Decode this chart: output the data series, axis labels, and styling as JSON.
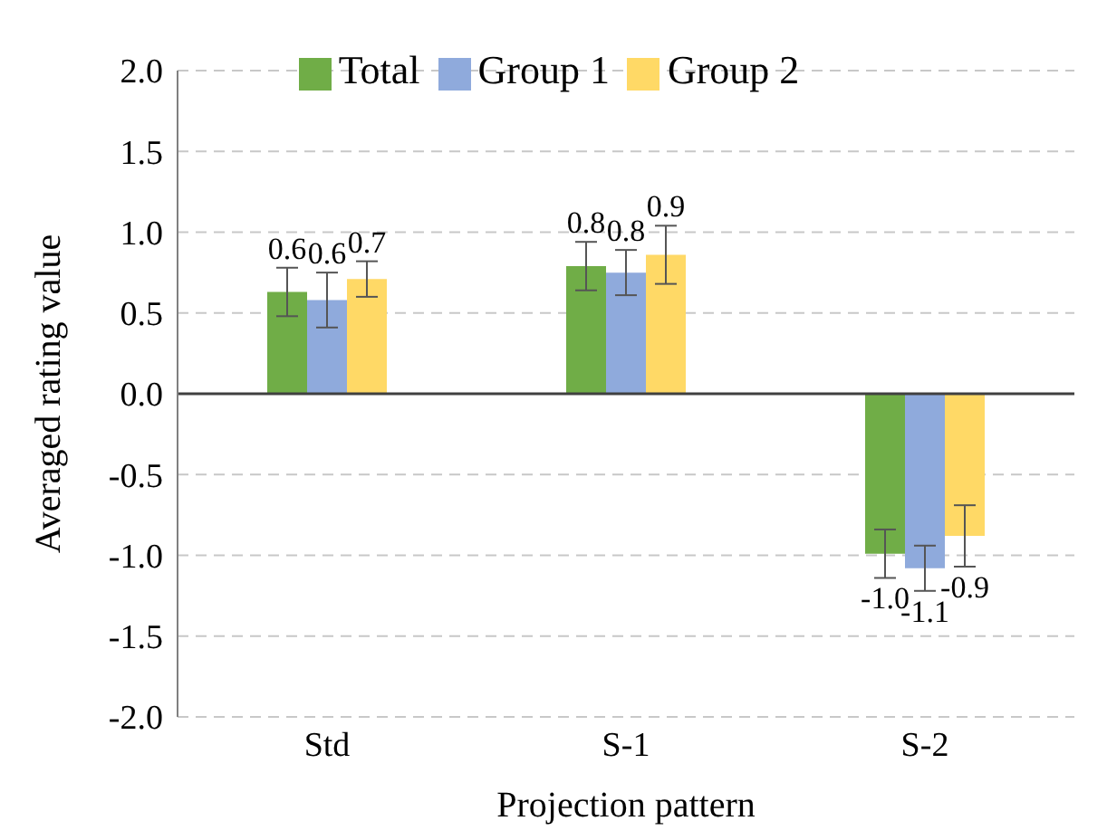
{
  "chart_data": {
    "type": "bar",
    "xlabel": "Projection pattern",
    "ylabel": "Averaged rating value",
    "categories": [
      "Std",
      "S-1",
      "S-2"
    ],
    "series": [
      {
        "name": "Total",
        "color": "#70ad47",
        "values": [
          0.63,
          0.79,
          -0.99
        ],
        "errors": [
          0.15,
          0.15,
          0.15
        ],
        "value_labels": [
          "0.6",
          "0.8",
          "-1.0"
        ]
      },
      {
        "name": "Group 1",
        "color": "#8faadc",
        "values": [
          0.58,
          0.75,
          -1.08
        ],
        "errors": [
          0.17,
          0.14,
          0.14
        ],
        "value_labels": [
          "0.6",
          "0.8",
          "-1.1"
        ]
      },
      {
        "name": "Group 2",
        "color": "#ffd966",
        "values": [
          0.71,
          0.86,
          -0.88
        ],
        "errors": [
          0.11,
          0.18,
          0.19
        ],
        "value_labels": [
          "0.7",
          "0.9",
          "-0.9"
        ]
      }
    ],
    "ylim": [
      -2,
      2
    ],
    "yticks": [
      {
        "value": -2,
        "label": "-2.0"
      },
      {
        "value": -1.5,
        "label": "-1.5"
      },
      {
        "value": -1,
        "label": "-1.0"
      },
      {
        "value": -0.5,
        "label": "-0.5"
      },
      {
        "value": 0,
        "label": "0.0"
      },
      {
        "value": 0.5,
        "label": "0.5"
      },
      {
        "value": 1,
        "label": "1.0"
      },
      {
        "value": 1.5,
        "label": "1.5"
      },
      {
        "value": 2,
        "label": "2.0"
      }
    ],
    "grid": "y",
    "legend": "top"
  }
}
